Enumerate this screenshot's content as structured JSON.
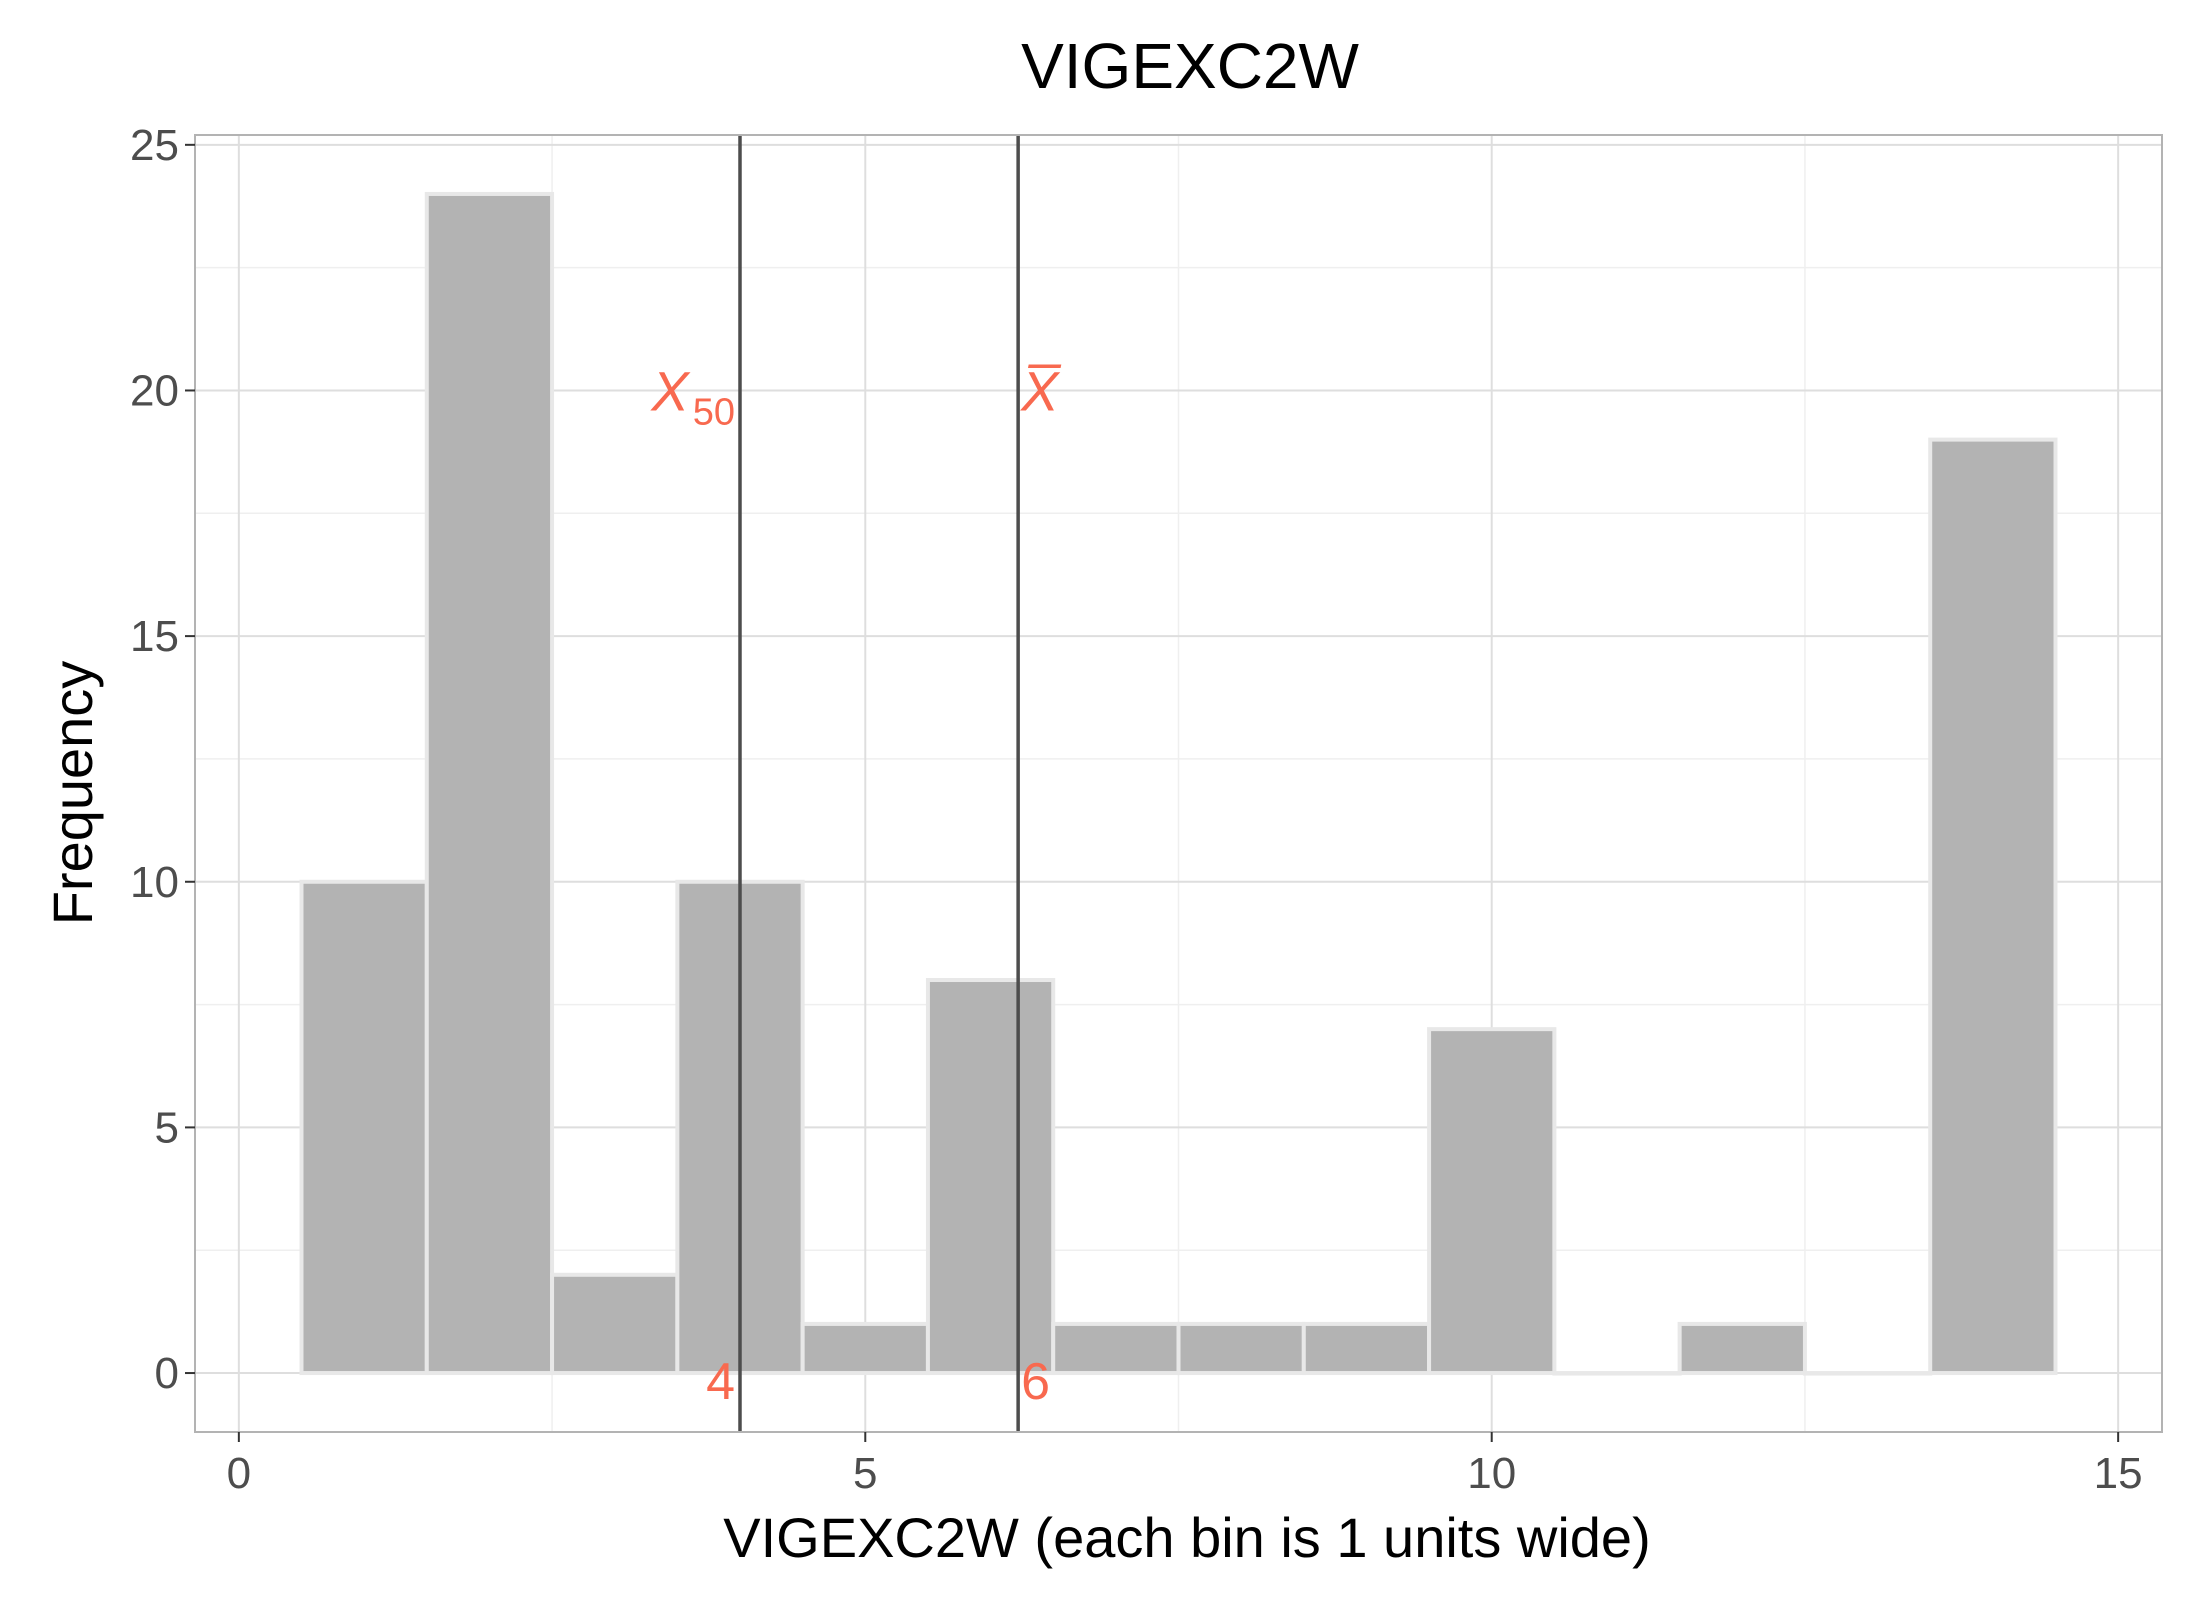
{
  "chart_data": {
    "type": "bar",
    "title": "VIGEXC2W",
    "xlabel": "VIGEXC2W (each bin is 1 units wide)",
    "ylabel": "Frequency",
    "bin_width": 1,
    "bins": [
      {
        "x": 1,
        "count": 10
      },
      {
        "x": 2,
        "count": 24
      },
      {
        "x": 3,
        "count": 2
      },
      {
        "x": 4,
        "count": 10
      },
      {
        "x": 5,
        "count": 1
      },
      {
        "x": 6,
        "count": 8
      },
      {
        "x": 7,
        "count": 1
      },
      {
        "x": 8,
        "count": 1
      },
      {
        "x": 9,
        "count": 1
      },
      {
        "x": 10,
        "count": 7
      },
      {
        "x": 11,
        "count": 0
      },
      {
        "x": 12,
        "count": 1
      },
      {
        "x": 13,
        "count": 0
      },
      {
        "x": 14,
        "count": 19
      }
    ],
    "xlim": [
      -0.35,
      15.35
    ],
    "ylim": [
      -1.2,
      25.2
    ],
    "x_ticks": [
      0,
      5,
      10,
      15
    ],
    "y_ticks": [
      0,
      5,
      10,
      15,
      20,
      25
    ],
    "grid": true,
    "reference_lines": [
      {
        "name": "median",
        "x": 4,
        "symbol": "X",
        "subscript": "50",
        "value_label": "4"
      },
      {
        "name": "mean",
        "x": 6.22,
        "symbol": "X̅",
        "subscript": "",
        "value_label": "6"
      }
    ],
    "colors": {
      "bar_fill": "#b3b3b3",
      "bar_outline": "#e8e8e8",
      "reference_line": "#4d4d4d",
      "annotation": "#f8694f",
      "grid_major": "#dedede",
      "grid_minor": "#efefef",
      "panel_border": "#b3b3b3"
    }
  }
}
